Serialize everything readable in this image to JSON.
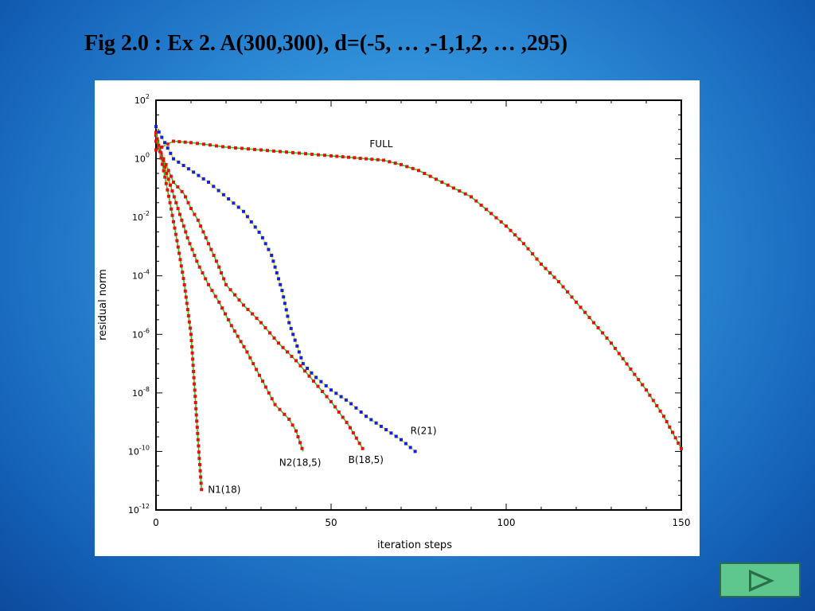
{
  "slide": {
    "title": "Fig 2.0 : Ex 2. A(300,300), d=(-5, … ,-1,1,2, … ,295)"
  },
  "nav": {
    "next_icon": "play-arrow-icon"
  },
  "colors": {
    "red": "#e8100f",
    "blue": "#1321e0",
    "green": "#16d316",
    "yellow": "#e8e81a",
    "axis": "#000000"
  },
  "chart_data": {
    "type": "line",
    "xlabel": "iteration steps",
    "ylabel": "residual norm",
    "xlim": [
      0,
      150
    ],
    "ylim_log10": [
      -12,
      2
    ],
    "y_scale": "log",
    "grid": false,
    "xticks": [
      0,
      50,
      100,
      150
    ],
    "yticks": [
      {
        "label": "10",
        "sup": "2"
      },
      {
        "label": "10",
        "sup": "0"
      },
      {
        "label": "10",
        "sup": "-2"
      },
      {
        "label": "10",
        "sup": "-4"
      },
      {
        "label": "10",
        "sup": "-6"
      },
      {
        "label": "10",
        "sup": "-8"
      },
      {
        "label": "10",
        "sup": "-10"
      },
      {
        "label": "10",
        "sup": "-12"
      }
    ],
    "series": [
      {
        "name": "FULL",
        "marker_color": "#e8100f",
        "line_color": "#16d316",
        "x": [
          0,
          5,
          10,
          20,
          30,
          40,
          50,
          55,
          60,
          65,
          70,
          75,
          80,
          85,
          90,
          95,
          100,
          105,
          110,
          115,
          120,
          125,
          130,
          135,
          140,
          145,
          150
        ],
        "log10_y": [
          0.3,
          0.6,
          0.55,
          0.4,
          0.3,
          0.2,
          0.1,
          0.05,
          0.0,
          -0.05,
          -0.2,
          -0.4,
          -0.7,
          -1.0,
          -1.3,
          -1.8,
          -2.3,
          -2.9,
          -3.6,
          -4.2,
          -4.9,
          -5.6,
          -6.3,
          -7.1,
          -7.9,
          -8.8,
          -9.9
        ]
      },
      {
        "name": "R(21)",
        "marker_color": "#1321e0",
        "line_color": "#e8e81a",
        "x": [
          0,
          5,
          10,
          15,
          20,
          25,
          30,
          33,
          36,
          38,
          40,
          42,
          45,
          50,
          55,
          60,
          65,
          70,
          74
        ],
        "log10_y": [
          1.1,
          0.0,
          -0.4,
          -0.8,
          -1.3,
          -1.8,
          -2.6,
          -3.3,
          -4.5,
          -5.6,
          -6.3,
          -7.0,
          -7.4,
          -7.9,
          -8.3,
          -8.8,
          -9.2,
          -9.6,
          -10.0
        ]
      },
      {
        "name": "B(18,5)",
        "marker_color": "#e8100f",
        "line_color": "#16d316",
        "x": [
          0,
          5,
          8,
          10,
          12,
          15,
          18,
          20,
          25,
          30,
          35,
          40,
          45,
          50,
          55,
          59
        ],
        "log10_y": [
          0.6,
          -0.8,
          -1.2,
          -1.7,
          -2.1,
          -2.9,
          -3.7,
          -4.3,
          -5.0,
          -5.6,
          -6.3,
          -6.9,
          -7.6,
          -8.3,
          -9.1,
          -9.9
        ]
      },
      {
        "name": "N2(18,5)",
        "marker_color": "#e8100f",
        "line_color": "#16d316",
        "x": [
          0,
          3,
          6,
          9,
          12,
          15,
          18,
          22,
          26,
          30,
          34,
          38,
          40,
          42
        ],
        "log10_y": [
          0.8,
          -0.5,
          -1.6,
          -2.7,
          -3.6,
          -4.3,
          -4.9,
          -5.8,
          -6.6,
          -7.5,
          -8.4,
          -8.9,
          -9.3,
          -10.0
        ]
      },
      {
        "name": "N1(18)",
        "marker_color": "#e8100f",
        "line_color": "#16d316",
        "x": [
          0,
          2,
          4,
          6,
          8,
          10,
          11,
          12,
          13
        ],
        "log10_y": [
          0.9,
          -0.3,
          -1.5,
          -2.8,
          -4.2,
          -6.0,
          -7.8,
          -9.6,
          -11.3
        ]
      }
    ],
    "annotations": [
      "FULL",
      "R(21)",
      "B(18,5)",
      "N2(18,5)",
      "N1(18)"
    ]
  }
}
